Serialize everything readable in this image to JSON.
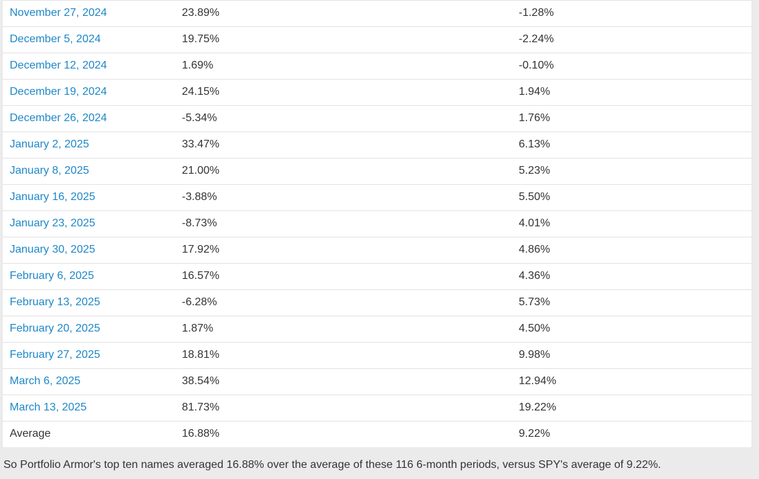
{
  "colors": {
    "link": "#1e87c8",
    "text": "#333333",
    "row_border": "#e2e2e2",
    "page_background": "#ebebeb",
    "table_background": "#ffffff"
  },
  "table": {
    "rows": [
      {
        "date": "November 27, 2024",
        "pa_return": "23.89%",
        "spy_return": "-1.28%",
        "link": true
      },
      {
        "date": "December 5, 2024",
        "pa_return": "19.75%",
        "spy_return": "-2.24%",
        "link": true
      },
      {
        "date": "December 12, 2024",
        "pa_return": "1.69%",
        "spy_return": "-0.10%",
        "link": true
      },
      {
        "date": "December 19, 2024",
        "pa_return": "24.15%",
        "spy_return": "1.94%",
        "link": true
      },
      {
        "date": "December 26, 2024",
        "pa_return": "-5.34%",
        "spy_return": "1.76%",
        "link": true
      },
      {
        "date": "January 2, 2025",
        "pa_return": "33.47%",
        "spy_return": "6.13%",
        "link": true
      },
      {
        "date": "January 8, 2025",
        "pa_return": "21.00%",
        "spy_return": "5.23%",
        "link": true
      },
      {
        "date": "January 16, 2025",
        "pa_return": "-3.88%",
        "spy_return": "5.50%",
        "link": true
      },
      {
        "date": "January 23, 2025",
        "pa_return": "-8.73%",
        "spy_return": "4.01%",
        "link": true
      },
      {
        "date": "January 30, 2025",
        "pa_return": "17.92%",
        "spy_return": "4.86%",
        "link": true
      },
      {
        "date": "February 6, 2025",
        "pa_return": "16.57%",
        "spy_return": "4.36%",
        "link": true
      },
      {
        "date": "February 13, 2025",
        "pa_return": "-6.28%",
        "spy_return": "5.73%",
        "link": true
      },
      {
        "date": "February 20, 2025",
        "pa_return": "1.87%",
        "spy_return": "4.50%",
        "link": true
      },
      {
        "date": "February 27, 2025",
        "pa_return": "18.81%",
        "spy_return": "9.98%",
        "link": true
      },
      {
        "date": "March 6, 2025",
        "pa_return": "38.54%",
        "spy_return": "12.94%",
        "link": true
      },
      {
        "date": "March 13, 2025",
        "pa_return": "81.73%",
        "spy_return": "19.22%",
        "link": true
      },
      {
        "date": "Average",
        "pa_return": "16.88%",
        "spy_return": "9.22%",
        "link": false
      }
    ]
  },
  "footer": {
    "note": "So Portfolio Armor's top ten names averaged 16.88% over the average of these 116 6-month periods, versus SPY's average of 9.22%."
  }
}
